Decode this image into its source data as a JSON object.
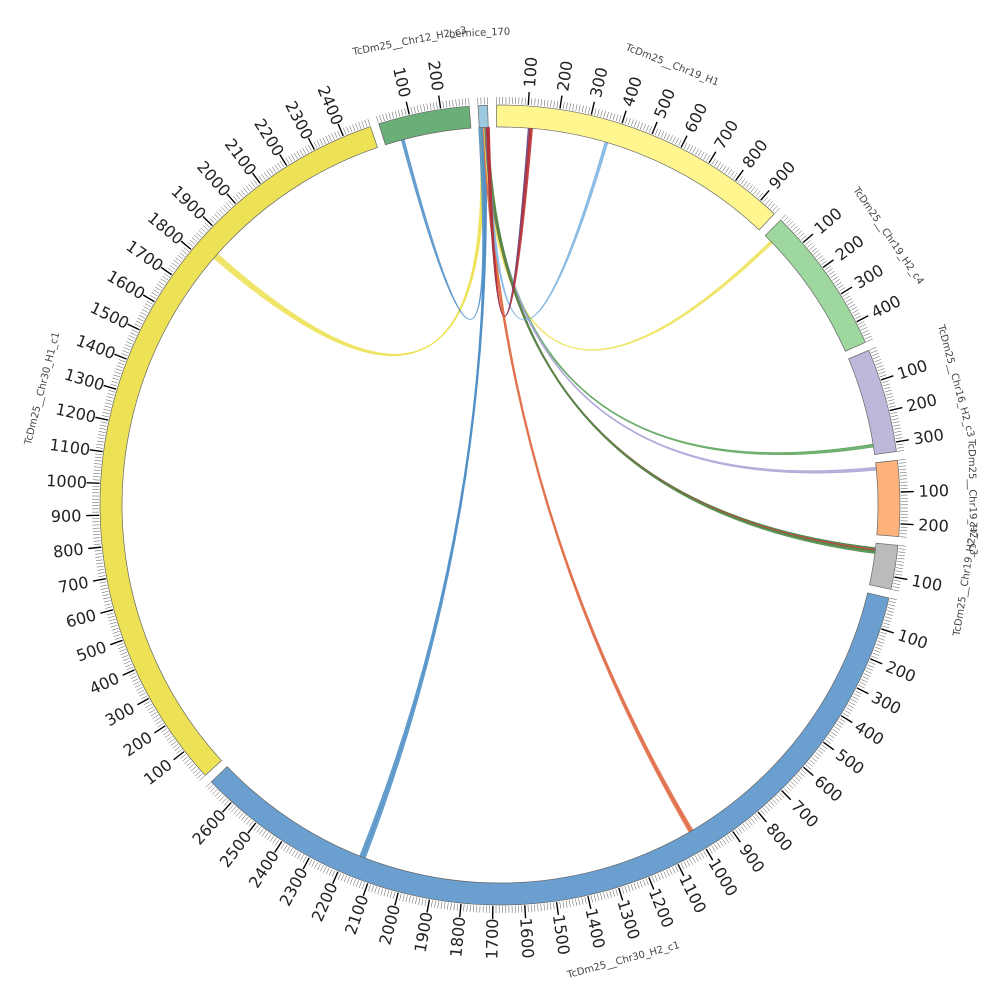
{
  "segments": [
    {
      "id": "bernice",
      "name": "bernice_170",
      "length": 30,
      "color": "#9ecae1",
      "label_every": 0
    },
    {
      "id": "chr19h1",
      "name": "TcDm25__Chr19_H1",
      "length": 960,
      "color": "#fff68f",
      "label_every": 100
    },
    {
      "id": "chr19h2c4",
      "name": "TcDm25__Chr19_H2_c4",
      "length": 470,
      "color": "#9fd89f",
      "label_every": 100
    },
    {
      "id": "chr16h2c3",
      "name": "TcDm25__Chr16_H2_c3",
      "length": 330,
      "color": "#bcb8da",
      "label_every": 100
    },
    {
      "id": "chr19h2c3",
      "name": "TcDm25__Chr19_H2_c3",
      "length": 240,
      "color": "#fdb27b",
      "label_every": 100
    },
    {
      "id": "chr19h2c2",
      "name": "TcDm25__Chr19_H2_c2",
      "length": 140,
      "color": "#bbbbbb",
      "label_every": 100
    },
    {
      "id": "chr30h2c1",
      "name": "TcDm25__Chr30_H2_c1",
      "length": 2690,
      "color": "#6a9fcf",
      "label_every": 100
    },
    {
      "id": "chr30h1c1",
      "name": "TcDm25__Chr30_H1_c1",
      "length": 2490,
      "color": "#ede256",
      "label_every": 100
    },
    {
      "id": "chr12h2c3",
      "name": "TcDm25__Chr12_H2_c3",
      "length": 290,
      "color": "#6aaf78",
      "label_every": 100
    }
  ],
  "links": [
    {
      "from": "bernice",
      "fpos": 5,
      "to": "chr30h1c1",
      "tpos": 1830,
      "color": "#ede256"
    },
    {
      "from": "bernice",
      "fpos": 9,
      "to": "chr30h1c1",
      "tpos": 1840,
      "color": "#ede256"
    },
    {
      "from": "bernice",
      "fpos": 13,
      "to": "chr30h2c1",
      "tpos": 2140,
      "color": "#4f8fc6"
    },
    {
      "from": "bernice",
      "fpos": 15,
      "to": "chr30h2c1",
      "tpos": 2150,
      "color": "#4f8fc6"
    },
    {
      "from": "bernice",
      "fpos": 17,
      "to": "chr30h2c1",
      "tpos": 1010,
      "color": "#e0704a"
    },
    {
      "from": "bernice",
      "fpos": 18,
      "to": "chr30h2c1",
      "tpos": 1015,
      "color": "#e0704a"
    },
    {
      "from": "bernice",
      "fpos": 20,
      "to": "chr19h2c4",
      "tpos": 30,
      "color": "#ede256"
    },
    {
      "from": "bernice",
      "fpos": 22,
      "to": "chr16h2c3",
      "tpos": 300,
      "color": "#5aa45a"
    },
    {
      "from": "bernice",
      "fpos": 23,
      "to": "chr19h2c3",
      "tpos": 20,
      "color": "#a9a3d6"
    },
    {
      "from": "bernice",
      "fpos": 24,
      "to": "chr19h2c2",
      "tpos": 20,
      "color": "#3b7a3b"
    },
    {
      "from": "bernice",
      "fpos": 25,
      "to": "chr19h2c2",
      "tpos": 25,
      "color": "#d04040"
    },
    {
      "from": "bernice",
      "fpos": 26,
      "to": "chr19h2c2",
      "tpos": 30,
      "color": "#4a8f4a"
    },
    {
      "from": "bernice",
      "fpos": 27,
      "to": "chr19h1",
      "tpos": 370,
      "color": "#7ab3e0"
    },
    {
      "from": "bernice",
      "fpos": 28,
      "to": "chr19h1",
      "tpos": 110,
      "color": "#5a3a7a"
    },
    {
      "from": "bernice",
      "fpos": 29,
      "to": "chr19h1",
      "tpos": 115,
      "color": "#c03030"
    },
    {
      "from": "chr12h2c3",
      "fpos": 60,
      "to": "bernice",
      "tpos": 3,
      "color": "#4f8fc6"
    }
  ]
}
